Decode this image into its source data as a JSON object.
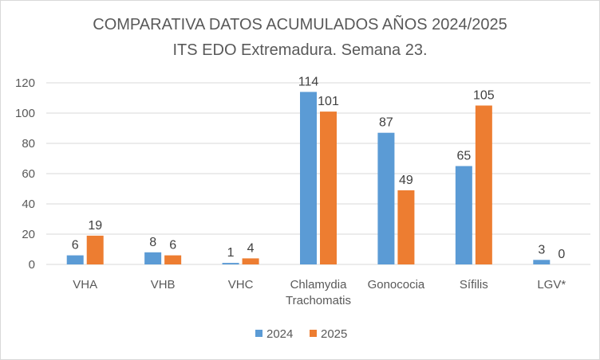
{
  "chart_data": {
    "type": "bar",
    "title": "COMPARATIVA DATOS ACUMULADOS AÑOS 2024/2025",
    "subtitle": "ITS EDO Extremadura. Semana 23.",
    "categories": [
      [
        "VHA"
      ],
      [
        "VHB"
      ],
      [
        "VHC"
      ],
      [
        "Chlamydia",
        "Trachomatis"
      ],
      [
        "Gonococia"
      ],
      [
        "Sífilis"
      ],
      [
        "LGV*"
      ]
    ],
    "series": [
      {
        "name": "2024",
        "color": "#5b9bd5",
        "values": [
          6,
          8,
          1,
          114,
          87,
          65,
          3
        ]
      },
      {
        "name": "2025",
        "color": "#ed7d31",
        "values": [
          19,
          6,
          4,
          101,
          49,
          105,
          0
        ]
      }
    ],
    "ylim": [
      0,
      120
    ],
    "yticks": [
      0,
      20,
      40,
      60,
      80,
      100,
      120
    ],
    "grid": true,
    "legend": "bottom"
  }
}
